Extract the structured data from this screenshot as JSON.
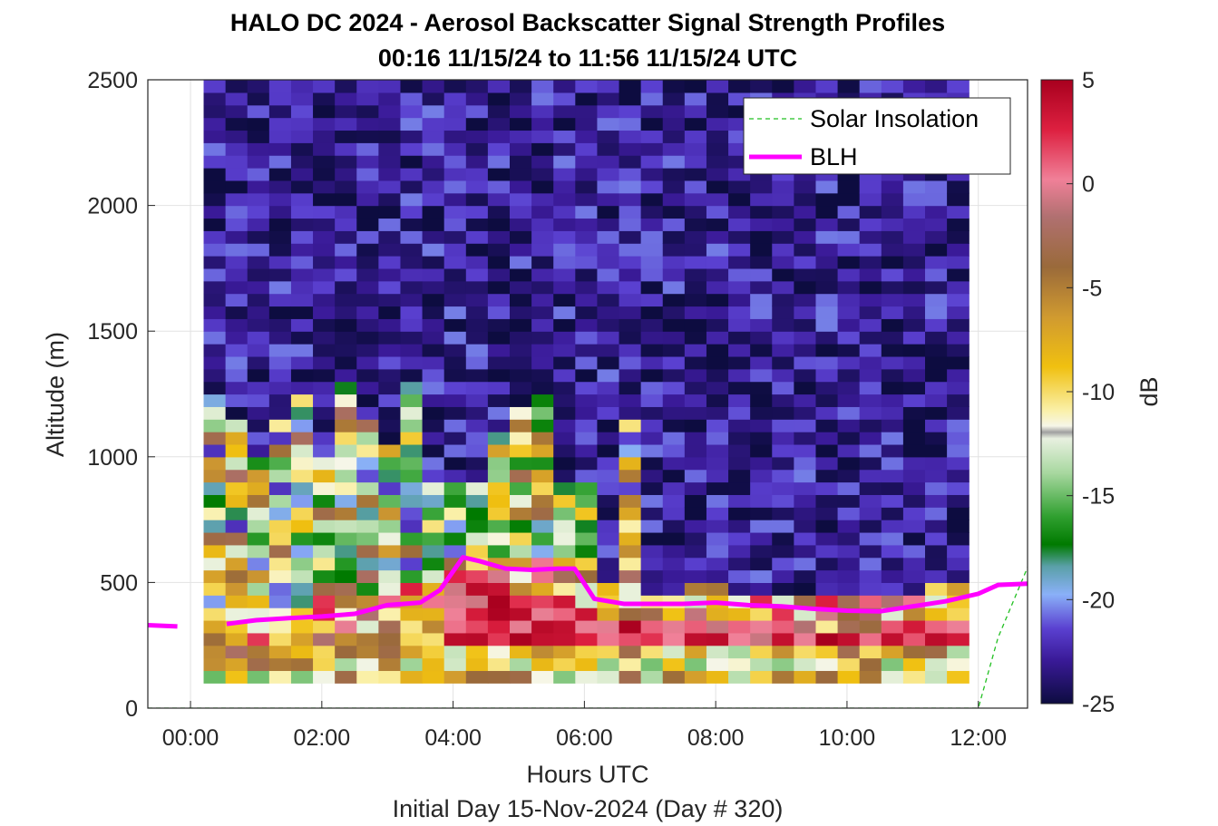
{
  "chart_data": {
    "type": "heatmap",
    "title": "HALO DC 2024 - Aerosol Backscatter Signal Strength Profiles",
    "subtitle": "00:16 11/15/24 to 11:56 11/15/24  UTC",
    "xlabel": "Hours UTC",
    "footnote": "Initial Day 15-Nov-2024 (Day # 320)",
    "ylabel": "Altitude (m)",
    "colorbar_label": "dB",
    "xlim": [
      -0.65,
      12.75
    ],
    "ylim": [
      0,
      2500
    ],
    "x_ticks": [
      0,
      2,
      4,
      6,
      8,
      10,
      12
    ],
    "x_tick_labels": [
      "00:00",
      "02:00",
      "04:00",
      "06:00",
      "08:00",
      "10:00",
      "12:00"
    ],
    "y_ticks": [
      0,
      500,
      1000,
      1500,
      2000,
      2500
    ],
    "y_tick_labels": [
      "0",
      "500",
      "1000",
      "1500",
      "2000",
      "2500"
    ],
    "clim": [
      -25,
      5
    ],
    "colorbar_ticks": [
      5,
      0,
      -5,
      -10,
      -15,
      -20,
      -25
    ],
    "colorbar_tick_labels": [
      "5",
      "0",
      "-5",
      "-10",
      "-15",
      "-20",
      "-25"
    ],
    "grid": true,
    "legend_location": "top-right",
    "legend": [
      "Solar Insolation",
      "BLH"
    ],
    "colors": {
      "blh": "#ff00ff",
      "solar": "#22c022"
    },
    "heatmap": {
      "x_start": 0.2,
      "x_step": 0.333,
      "y_start": 100,
      "y_step": 50,
      "columns": 35,
      "rows": 48,
      "approximate": true,
      "description_of_values": "dB backscatter; high (0 to 5) near surface up to ~400 m, clear air (-22 to -25) above ~1300 m"
    },
    "series": [
      {
        "name": "BLH",
        "x": [
          -0.65,
          -0.2,
          0.55,
          1.0,
          1.5,
          2.0,
          2.5,
          3.0,
          3.5,
          3.8,
          4.15,
          4.4,
          4.8,
          5.2,
          5.6,
          5.85,
          6.15,
          6.6,
          7.0,
          7.5,
          8.0,
          8.5,
          9.0,
          9.5,
          10.0,
          10.5,
          11.0,
          11.5,
          12.0,
          12.3,
          12.75
        ],
        "y": [
          330,
          325,
          335,
          350,
          358,
          365,
          375,
          410,
          420,
          470,
          600,
          585,
          555,
          550,
          555,
          555,
          435,
          415,
          415,
          415,
          420,
          410,
          405,
          395,
          388,
          385,
          405,
          425,
          455,
          490,
          495
        ],
        "gaps_x": [
          [
            -0.2,
            0.55
          ]
        ]
      },
      {
        "name": "Solar Insolation",
        "x": [
          -0.65,
          12.0,
          12.3,
          12.75
        ],
        "y": [
          0,
          0,
          280,
          560
        ]
      }
    ]
  }
}
